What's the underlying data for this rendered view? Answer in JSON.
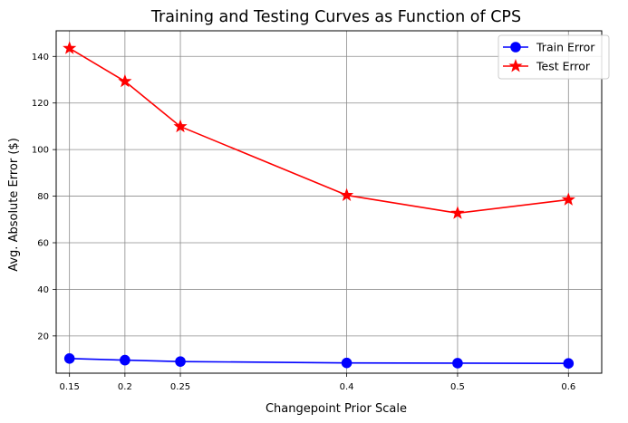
{
  "chart_data": {
    "type": "line",
    "title": "Training and Testing Curves as Function of CPS",
    "xlabel": "Changepoint Prior Scale",
    "ylabel": "Avg. Absolute Error ($)",
    "x": [
      0.15,
      0.2,
      0.25,
      0.4,
      0.5,
      0.6
    ],
    "x_tick_labels": [
      "0.15",
      "0.2",
      "0.25",
      "0.4",
      "0.5",
      "0.6"
    ],
    "y_ticks": [
      20,
      40,
      60,
      80,
      100,
      120,
      140
    ],
    "xlim": [
      0.138,
      0.63
    ],
    "ylim": [
      4,
      151
    ],
    "grid": true,
    "legend_position": "top-right",
    "series": [
      {
        "name": "Train Error",
        "color": "#0000ff",
        "marker": "circle",
        "values": [
          10.3,
          9.6,
          9.0,
          8.4,
          8.3,
          8.2
        ]
      },
      {
        "name": "Test Error",
        "color": "#ff0000",
        "marker": "star",
        "values": [
          143.5,
          129.3,
          109.9,
          80.4,
          72.7,
          78.5
        ]
      }
    ]
  }
}
